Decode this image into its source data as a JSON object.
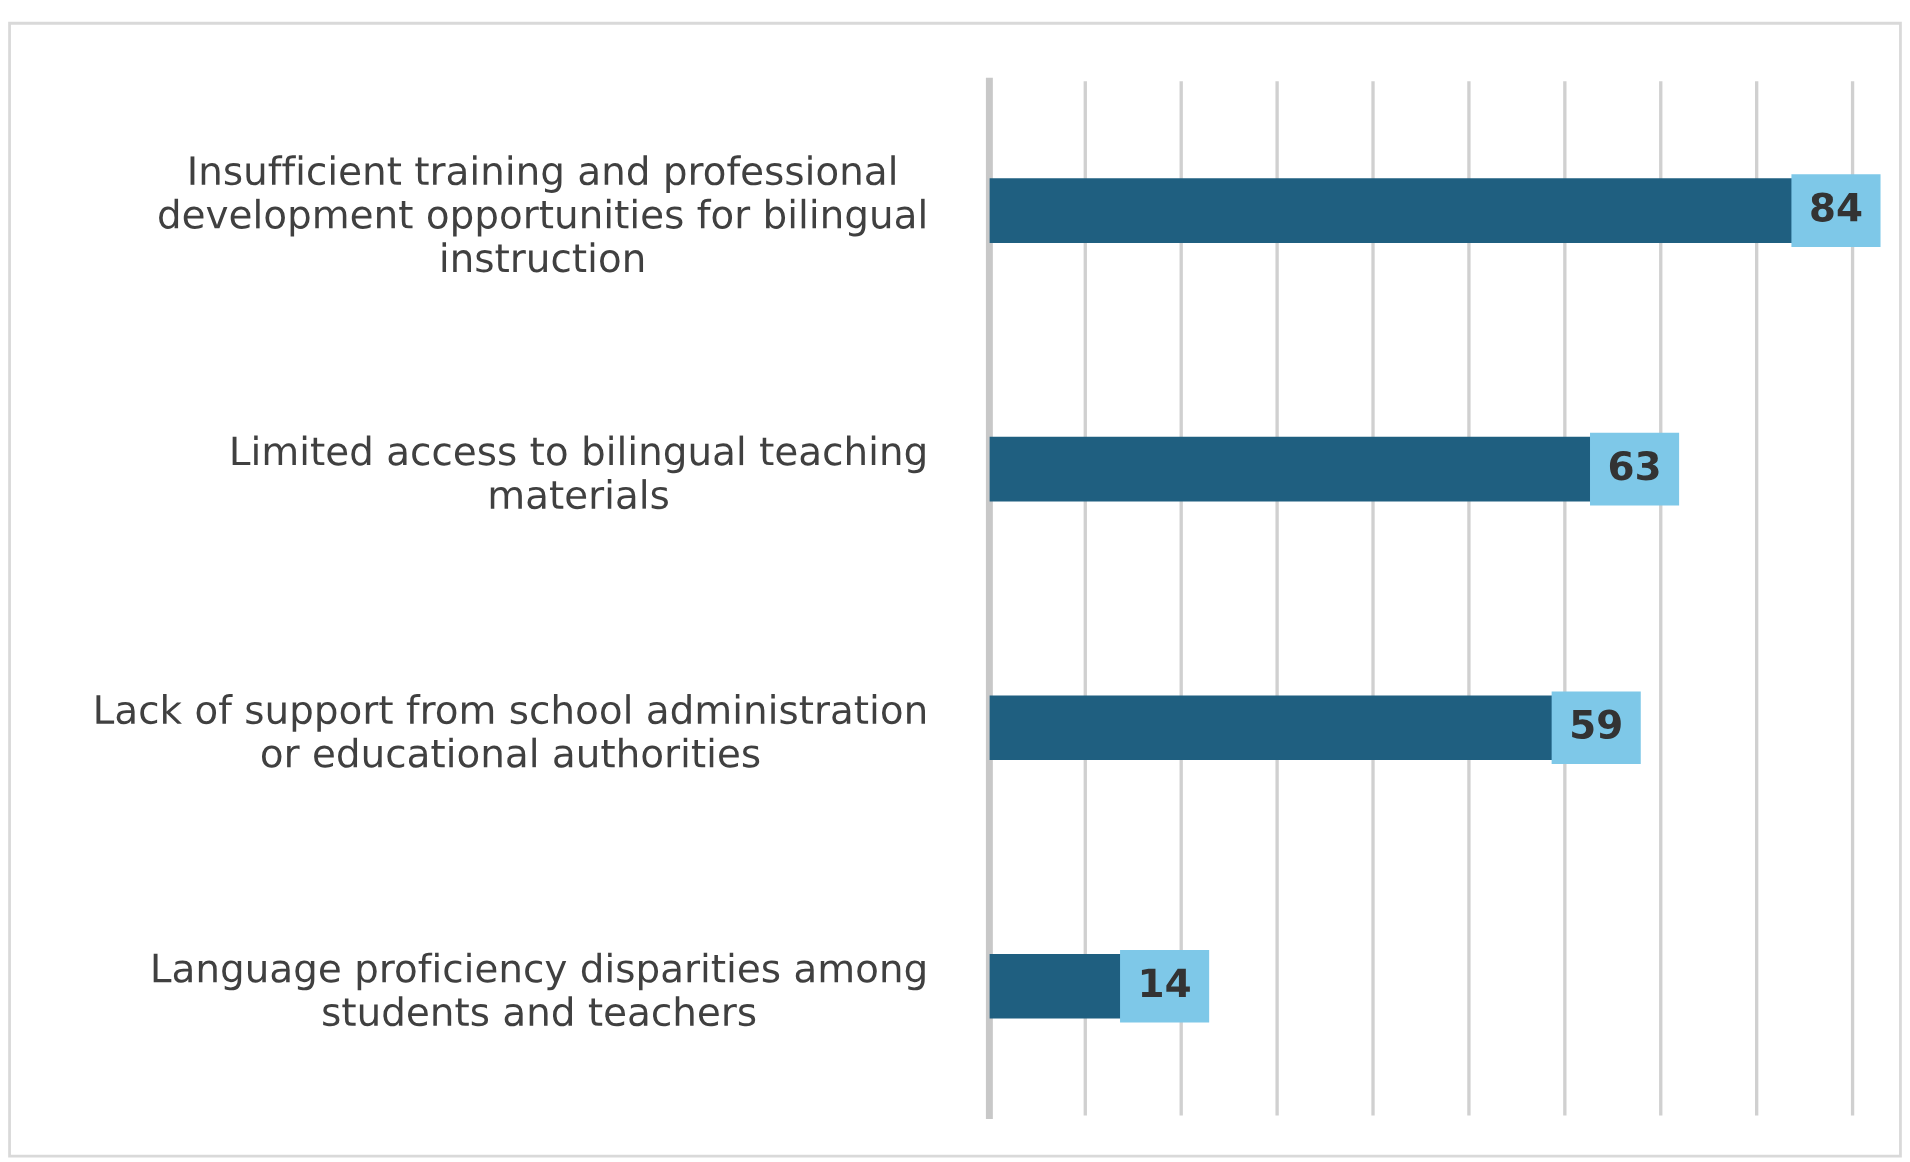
{
  "chart_data": {
    "type": "bar",
    "orientation": "horizontal",
    "categories": [
      "Insufficient training and professional\ndevelopment opportunities for bilingual\ninstruction",
      "Limited access to bilingual teaching\nmaterials",
      "Lack of support from school administration\nor educational authorities",
      "Language proficiency disparities among\nstudents and teachers"
    ],
    "values": [
      84,
      63,
      59,
      14
    ],
    "color": "#1f5f80",
    "xlim": [
      0,
      93
    ],
    "xticks": [
      {
        "value": 0,
        "label": null
      },
      {
        "value": 10,
        "label": null
      },
      {
        "value": 20,
        "label": null
      },
      {
        "value": 30,
        "label": null
      },
      {
        "value": 40,
        "label": null
      },
      {
        "value": 50,
        "label": null
      },
      {
        "value": 60,
        "label": null
      },
      {
        "value": 70,
        "label": null
      },
      {
        "value": 80,
        "label": null
      },
      {
        "value": 90,
        "label": null
      }
    ],
    "grid": "x",
    "tick_labels": "y",
    "data_labels": true,
    "legend": false
  }
}
